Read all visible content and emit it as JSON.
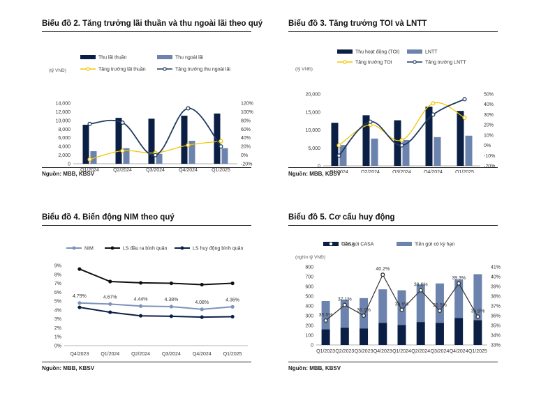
{
  "charts": {
    "c2": {
      "title": "Biểu đồ 2. Tăng trưởng lãi thuần và thu ngoài lãi theo quý",
      "source": "Nguồn: MBB, KBSV",
      "unit": "(tỷ VNĐ)",
      "colors": {
        "bar1": "#0b1f45",
        "bar2": "#6b83ad",
        "line1": "#f2c500",
        "line2": "#1f3a5f"
      },
      "chart_data": {
        "type": "bar",
        "categories": [
          "Q1/2024",
          "Q2/2024",
          "Q3/2024",
          "Q4/2024",
          "Q1/2025"
        ],
        "series": [
          {
            "name": "Thu lãi thuần",
            "kind": "bar",
            "axis": "left",
            "values": [
              9000,
              10600,
              10400,
              11100,
              11600
            ]
          },
          {
            "name": "Thu ngoài lãi",
            "kind": "bar",
            "axis": "left",
            "values": [
              2900,
              3600,
              2300,
              5300,
              3600
            ]
          },
          {
            "name": "Tăng trưởng lãi thuần",
            "kind": "line",
            "axis": "right",
            "values": [
              -10,
              10,
              5,
              23,
              32
            ]
          },
          {
            "name": "Tăng trưởng thu ngoài lãi",
            "kind": "line",
            "axis": "right",
            "values": [
              72,
              75,
              0,
              108,
              20
            ]
          }
        ],
        "ylim": [
          0,
          14000
        ],
        "yticks": [
          "0",
          "2,000",
          "4,000",
          "6,000",
          "8,000",
          "10,000",
          "12,000",
          "14,000"
        ],
        "y2lim": [
          -20,
          120
        ],
        "y2ticks": [
          "-20%",
          "0%",
          "20%",
          "40%",
          "60%",
          "80%",
          "100%",
          "120%"
        ],
        "legend": "top"
      }
    },
    "c3": {
      "title": "Biểu đồ 3. Tăng trưởng TOI và LNTT",
      "source": "Nguồn: MBB, KBSV",
      "unit": "(tỷ VNĐ)",
      "colors": {
        "bar1": "#0b1f45",
        "bar2": "#6b83ad",
        "line1": "#f2c500",
        "line2": "#1f3a5f"
      },
      "chart_data": {
        "type": "bar",
        "categories": [
          "Q1/2024",
          "Q2/2024",
          "Q3/2024",
          "Q4/2024",
          "Q1/2025"
        ],
        "series": [
          {
            "name": "Thu hoạt động (TOI)",
            "kind": "bar",
            "axis": "left",
            "values": [
              12000,
              14100,
              12700,
              16500,
              15300
            ]
          },
          {
            "name": "LNTT",
            "kind": "bar",
            "axis": "left",
            "values": [
              5800,
              7600,
              7200,
              8000,
              8400
            ]
          },
          {
            "name": "Tăng trưởng TOI",
            "kind": "line",
            "axis": "right",
            "values": [
              0,
              20,
              5,
              41,
              27
            ]
          },
          {
            "name": "Tăng trưởng LNTT",
            "kind": "line",
            "axis": "right",
            "values": [
              -10,
              23,
              0,
              30,
              45
            ]
          }
        ],
        "ylim": [
          0,
          20000
        ],
        "yticks": [
          "0",
          "5,000",
          "10,000",
          "15,000",
          "20,000"
        ],
        "y2lim": [
          -20,
          50
        ],
        "y2ticks": [
          "-20%",
          "-10%",
          "0%",
          "10%",
          "20%",
          "30%",
          "40%",
          "50%"
        ],
        "legend": "top"
      }
    },
    "c4": {
      "title": "Biểu đồ 4. Biến động NIM theo quý",
      "source": "Nguồn: MBB, KBSV",
      "colors": {
        "nim": "#7d93b8",
        "ls1": "#111111",
        "ls2": "#0b1f45"
      },
      "chart_data": {
        "type": "line",
        "categories": [
          "Q4/2023",
          "Q1/2024",
          "Q2/2024",
          "Q3/2024",
          "Q4/2024",
          "Q1/2025"
        ],
        "series": [
          {
            "name": "NIM",
            "values": [
              4.79,
              4.67,
              4.44,
              4.38,
              4.08,
              4.36
            ],
            "labels": [
              "4.79%",
              "4.67%",
              "4.44%",
              "4.38%",
              "4.08%",
              "4.36%"
            ]
          },
          {
            "name": "LS đầu ra bình quân",
            "values": [
              8.6,
              7.2,
              7.05,
              7.0,
              6.85,
              7.0
            ]
          },
          {
            "name": "LS huy động bình quân",
            "values": [
              4.3,
              3.75,
              3.35,
              3.3,
              3.2,
              3.25
            ]
          }
        ],
        "ylim": [
          0,
          9
        ],
        "yticks": [
          "0%",
          "1%",
          "2%",
          "3%",
          "4%",
          "5%",
          "6%",
          "7%",
          "8%",
          "9%"
        ],
        "legend": "top"
      }
    },
    "c5": {
      "title": "Biểu đồ 5. Cơ cấu huy động",
      "source": "Nguồn: MBB, KBSV",
      "unit": "(nghìn tỷ VNĐ)",
      "colors": {
        "bar1": "#0b1f45",
        "bar2": "#6b83ad",
        "line": "#333333"
      },
      "chart_data": {
        "type": "bar",
        "stacked": true,
        "categories": [
          "Q1/2023",
          "Q2/2023",
          "Q3/2023",
          "Q4/2023",
          "Q1/2024",
          "Q2/2024",
          "Q3/2024",
          "Q4/2024",
          "Q1/2025"
        ],
        "series": [
          {
            "name": "Tiền gửi CASA",
            "kind": "bar",
            "axis": "left",
            "values": [
              160,
              175,
              170,
              225,
              205,
              235,
              225,
              275,
              255
            ]
          },
          {
            "name": "Tiền gửi có kỳ hạn",
            "kind": "bar",
            "axis": "left",
            "values": [
              290,
              290,
              310,
              345,
              355,
              385,
              405,
              395,
              470
            ]
          },
          {
            "name": "CASA",
            "kind": "line",
            "axis": "right",
            "values": [
              35.5,
              37.1,
              36.0,
              40.2,
              36.6,
              38.6,
              36.5,
              39.3,
              35.9
            ],
            "labels": [
              "35.5%",
              "37.1%",
              "36.0%",
              "40.2%",
              "36.6%",
              "38.6%",
              "36.5%",
              "39.3%",
              "35.9%"
            ]
          }
        ],
        "ylim": [
          0,
          800
        ],
        "yticks": [
          "0",
          "100",
          "200",
          "300",
          "400",
          "500",
          "600",
          "700",
          "800"
        ],
        "y2lim": [
          33,
          41
        ],
        "y2ticks": [
          "33%",
          "34%",
          "35%",
          "36%",
          "37%",
          "38%",
          "39%",
          "40%",
          "41%"
        ],
        "legend": "top"
      }
    }
  }
}
